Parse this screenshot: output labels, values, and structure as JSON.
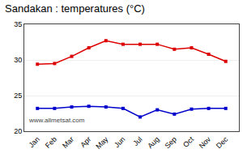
{
  "chart_data": {
    "type": "line",
    "title": "Sandakan : temperatures (°C)",
    "categories": [
      "Jan",
      "Feb",
      "Mar",
      "Apr",
      "May",
      "Jun",
      "Jul",
      "Aug",
      "Sep",
      "Oct",
      "Nov",
      "Dec"
    ],
    "series": [
      {
        "color": "#dd0000",
        "marker": "square",
        "values": [
          29.4,
          29.5,
          30.5,
          31.7,
          32.7,
          32.2,
          32.2,
          32.2,
          31.5,
          31.7,
          30.8,
          29.8
        ]
      },
      {
        "color": "#0000cc",
        "marker": "square",
        "values": [
          23.2,
          23.2,
          23.4,
          23.5,
          23.4,
          23.2,
          22.0,
          23.0,
          22.4,
          23.1,
          23.2,
          23.2
        ]
      }
    ],
    "ylim": [
      20,
      35
    ],
    "yticks": [
      20,
      25,
      30,
      35
    ],
    "grid": true,
    "annotations": [
      "www.allmetsat.com"
    ]
  }
}
